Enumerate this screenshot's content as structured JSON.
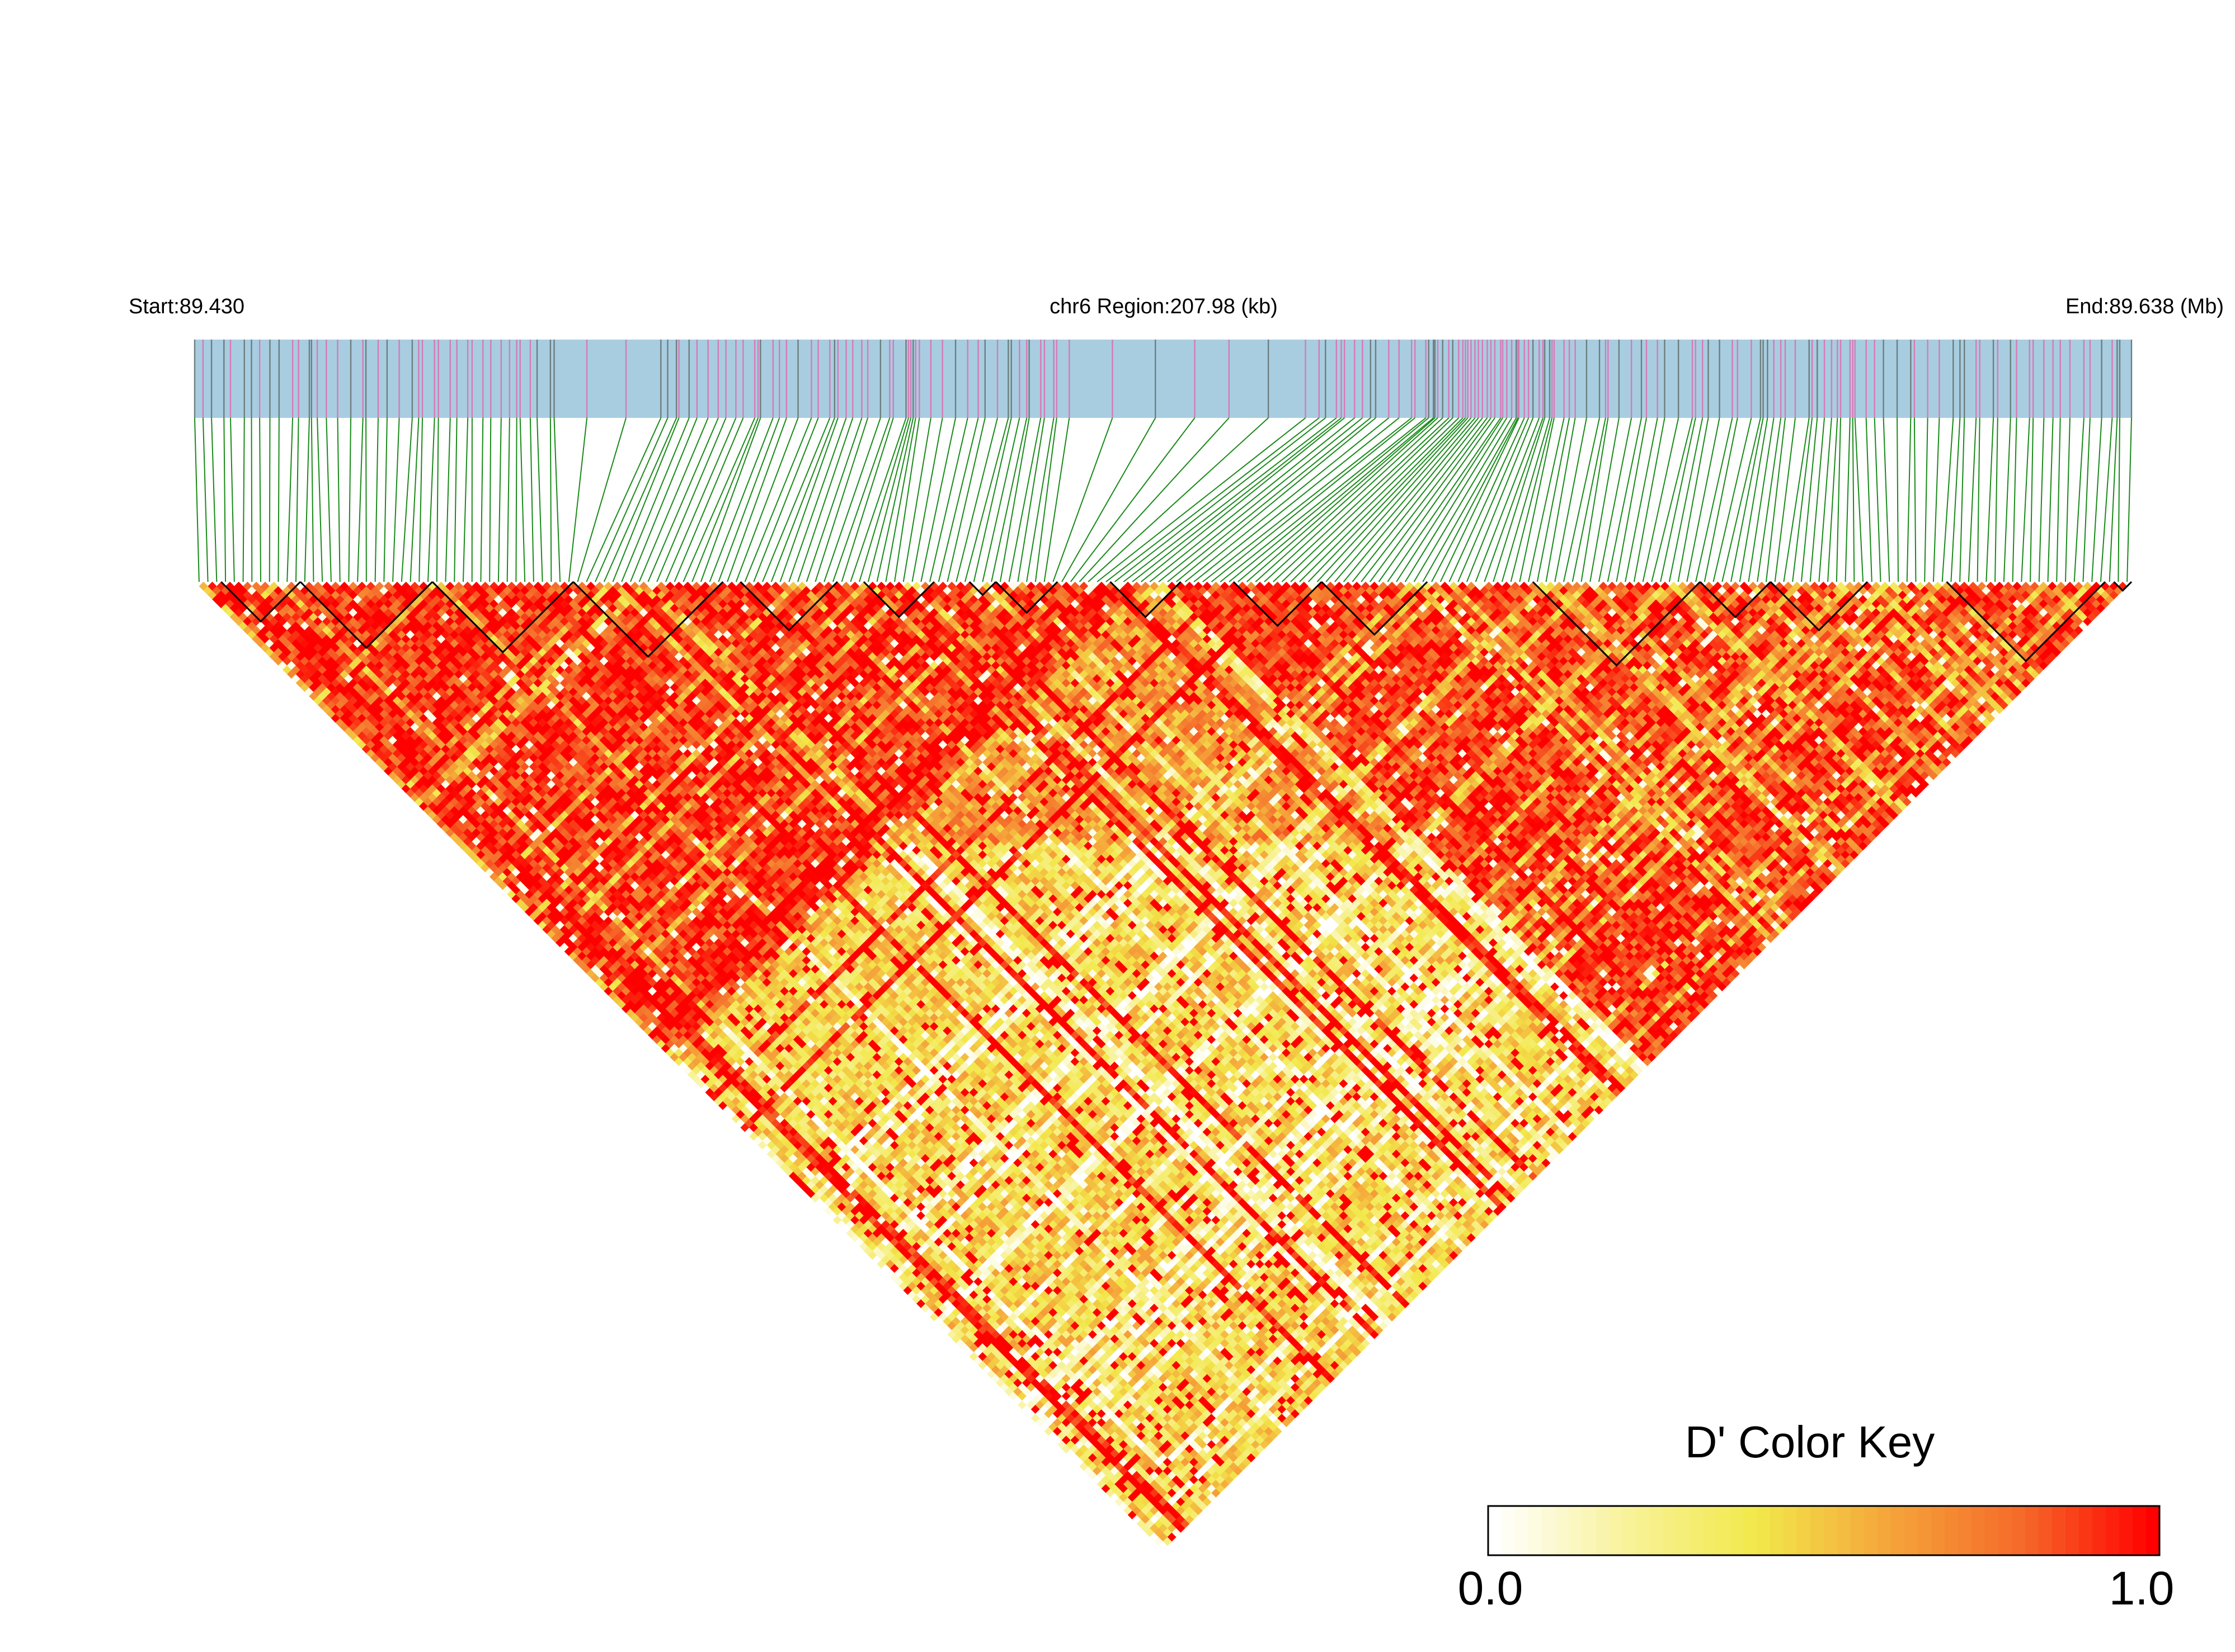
{
  "chart_data": {
    "type": "heatmap",
    "chromosome": "chr6",
    "header": {
      "start_label": "Start:89.430",
      "region_label": "chr6 Region:207.98 (kb)",
      "end_label": "End:89.638 (Mb)"
    },
    "region": {
      "start_mb": 89.43,
      "end_mb": 89.638,
      "length_kb": 207.98
    },
    "snp_count": 220,
    "metric": "D'",
    "value_range": [
      0.0,
      1.0
    ],
    "color_key": {
      "title": "D' Color Key",
      "min_label": "0.0",
      "max_label": "1.0",
      "colors": [
        "#ffffff",
        "#f8f29a",
        "#f2e84a",
        "#f5a43a",
        "#f56a2a",
        "#ff0000"
      ]
    },
    "track_colors": {
      "track_background": "#a8cde0",
      "snp_type_a": "#d67ab8",
      "snp_type_b": "#6e7e7e",
      "connector": "#1a8a1a"
    },
    "ld_blocks_snp_ranges": [
      [
        3,
        12
      ],
      [
        12,
        27
      ],
      [
        27,
        43
      ],
      [
        43,
        60
      ],
      [
        62,
        73
      ],
      [
        76,
        84
      ],
      [
        88,
        91
      ],
      [
        91,
        98
      ],
      [
        104,
        112
      ],
      [
        118,
        128
      ],
      [
        128,
        140
      ],
      [
        152,
        171
      ],
      [
        171,
        179
      ],
      [
        179,
        190
      ],
      [
        199,
        217
      ],
      [
        218,
        220
      ]
    ],
    "ld_structure": [
      {
        "snp_range": [
          0,
          110
        ],
        "mean_dprime": 0.9
      },
      {
        "snp_range": [
          110,
          220
        ],
        "mean_dprime": 0.88
      },
      {
        "between_segments": true,
        "mean_dprime": 0.45
      }
    ]
  }
}
